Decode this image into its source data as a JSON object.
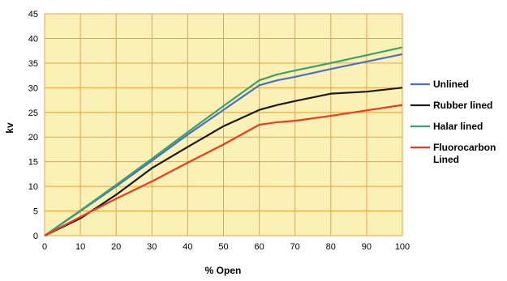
{
  "chart_data": {
    "type": "line",
    "title": "",
    "xlabel": "% Open",
    "ylabel": "kv",
    "xlim": [
      0,
      100
    ],
    "ylim": [
      0,
      45
    ],
    "x_ticks": [
      0,
      10,
      20,
      30,
      40,
      50,
      60,
      70,
      80,
      90,
      100
    ],
    "y_ticks": [
      0,
      5,
      10,
      15,
      20,
      25,
      30,
      35,
      40,
      45
    ],
    "grid": true,
    "plot_background": "#fbf0b6",
    "grid_color": "#f2a13a",
    "legend_position": "right",
    "series": [
      {
        "name": "Unlined",
        "color": "#4a6fc7",
        "x": [
          0,
          10,
          20,
          30,
          40,
          50,
          60,
          65,
          70,
          80,
          90,
          100
        ],
        "y": [
          0,
          5,
          10,
          15.2,
          20.5,
          25.5,
          30.5,
          31.5,
          32.2,
          33.8,
          35.3,
          36.8
        ]
      },
      {
        "name": "Rubber lined",
        "color": "#1a1a1a",
        "x": [
          0,
          10,
          20,
          30,
          40,
          50,
          60,
          65,
          70,
          80,
          90,
          100
        ],
        "y": [
          0,
          3.5,
          8.3,
          13.7,
          18,
          22.2,
          25.5,
          26.5,
          27.3,
          28.8,
          29.2,
          30
        ]
      },
      {
        "name": "Halar lined",
        "color": "#3aa36a",
        "x": [
          0,
          10,
          20,
          30,
          40,
          50,
          60,
          65,
          70,
          80,
          90,
          100
        ],
        "y": [
          0,
          5.1,
          10.3,
          15.6,
          21,
          26.3,
          31.5,
          32.7,
          33.5,
          35,
          36.6,
          38.2
        ]
      },
      {
        "name": "Fluorocarbon Lined",
        "label_lines": [
          "Fluorocarbon",
          "Lined"
        ],
        "color": "#f03a1e",
        "x": [
          0,
          10,
          20,
          30,
          40,
          50,
          60,
          65,
          70,
          80,
          90,
          100
        ],
        "y": [
          0,
          3.8,
          7.5,
          11,
          14.8,
          18.5,
          22.5,
          23,
          23.3,
          24.3,
          25.4,
          26.5
        ]
      }
    ]
  }
}
